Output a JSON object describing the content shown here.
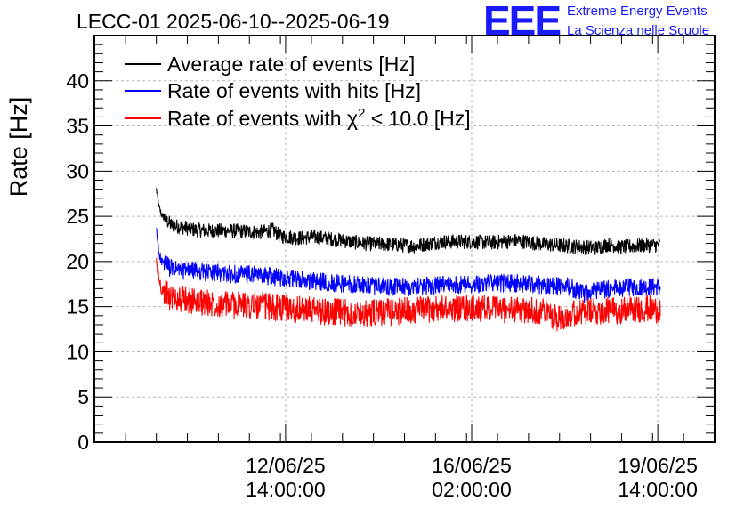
{
  "title": "LECC-01 2025-06-10--2025-06-19",
  "logo": {
    "mark": "EEE",
    "line1": "Extreme Energy Events",
    "line2": "La Scienza nelle Scuole"
  },
  "chart_data": {
    "type": "line",
    "title": "LECC-01 2025-06-10--2025-06-19",
    "xlabel": "",
    "ylabel": "Rate [Hz]",
    "ylim": [
      0,
      45
    ],
    "yticks": [
      0,
      5,
      10,
      15,
      20,
      25,
      30,
      35,
      40
    ],
    "grid": true,
    "legend_position": "top-left",
    "x_unit": "hours since 2025-06-10 12:00:00",
    "xlim": [
      -24,
      216
    ],
    "xticks": [
      {
        "x": 50,
        "date": "12/06/25",
        "time": "14:00:00"
      },
      {
        "x": 122,
        "date": "16/06/25",
        "time": "02:00:00"
      },
      {
        "x": 194,
        "date": "19/06/25",
        "time": "14:00:00"
      }
    ],
    "series": [
      {
        "name": "Average rate of events [Hz]",
        "color": "#000000",
        "noise": 0.8,
        "x": [
          0,
          1,
          2,
          4,
          6,
          10,
          15,
          20,
          30,
          40,
          45,
          48,
          55,
          62,
          70,
          80,
          90,
          100,
          110,
          120,
          130,
          140,
          150,
          160,
          170,
          175,
          180,
          190,
          195
        ],
        "y": [
          28,
          26,
          25.2,
          24.5,
          24,
          23.8,
          23.5,
          23.4,
          23.4,
          23.2,
          23.5,
          22.8,
          22.6,
          22.7,
          22.4,
          22.0,
          21.9,
          21.7,
          22.2,
          22.2,
          22.1,
          22.3,
          21.9,
          21.7,
          21.5,
          21.9,
          21.6,
          21.8,
          21.8
        ]
      },
      {
        "name": "Rate of events with hits [Hz]",
        "color": "#0000ff",
        "noise": 1.0,
        "x": [
          0,
          1,
          2,
          4,
          6,
          10,
          15,
          20,
          30,
          40,
          50,
          60,
          70,
          80,
          90,
          100,
          110,
          120,
          130,
          140,
          150,
          160,
          165,
          170,
          180,
          190,
          195
        ],
        "y": [
          23.5,
          21,
          20,
          19.6,
          19.2,
          19,
          19,
          18.8,
          18.6,
          18.5,
          18.2,
          17.8,
          17.6,
          17.4,
          17.2,
          17.2,
          17.4,
          17.5,
          17.6,
          17.6,
          17.4,
          17.2,
          16.4,
          16.8,
          17.1,
          17.2,
          17.2
        ]
      },
      {
        "name": "Rate of events with χ² < 10.0 [Hz]",
        "legend_prefix": "Rate of events with ",
        "legend_symbol": "χ",
        "legend_sup": "2",
        "legend_suffix": " < 10.0 [Hz]",
        "color": "#ff0000",
        "noise": 1.5,
        "x": [
          0,
          1,
          2,
          4,
          6,
          10,
          15,
          20,
          30,
          40,
          50,
          60,
          70,
          80,
          90,
          100,
          110,
          120,
          130,
          140,
          150,
          155,
          160,
          170,
          180,
          190,
          195
        ],
        "y": [
          20,
          18,
          17,
          16.4,
          16,
          15.8,
          15.6,
          15.4,
          15.2,
          15.1,
          14.8,
          14.6,
          14.4,
          14.2,
          14.4,
          14.6,
          14.8,
          14.8,
          14.8,
          14.6,
          14.5,
          13.8,
          14.2,
          14.5,
          14.6,
          14.8,
          14.6
        ]
      }
    ]
  }
}
